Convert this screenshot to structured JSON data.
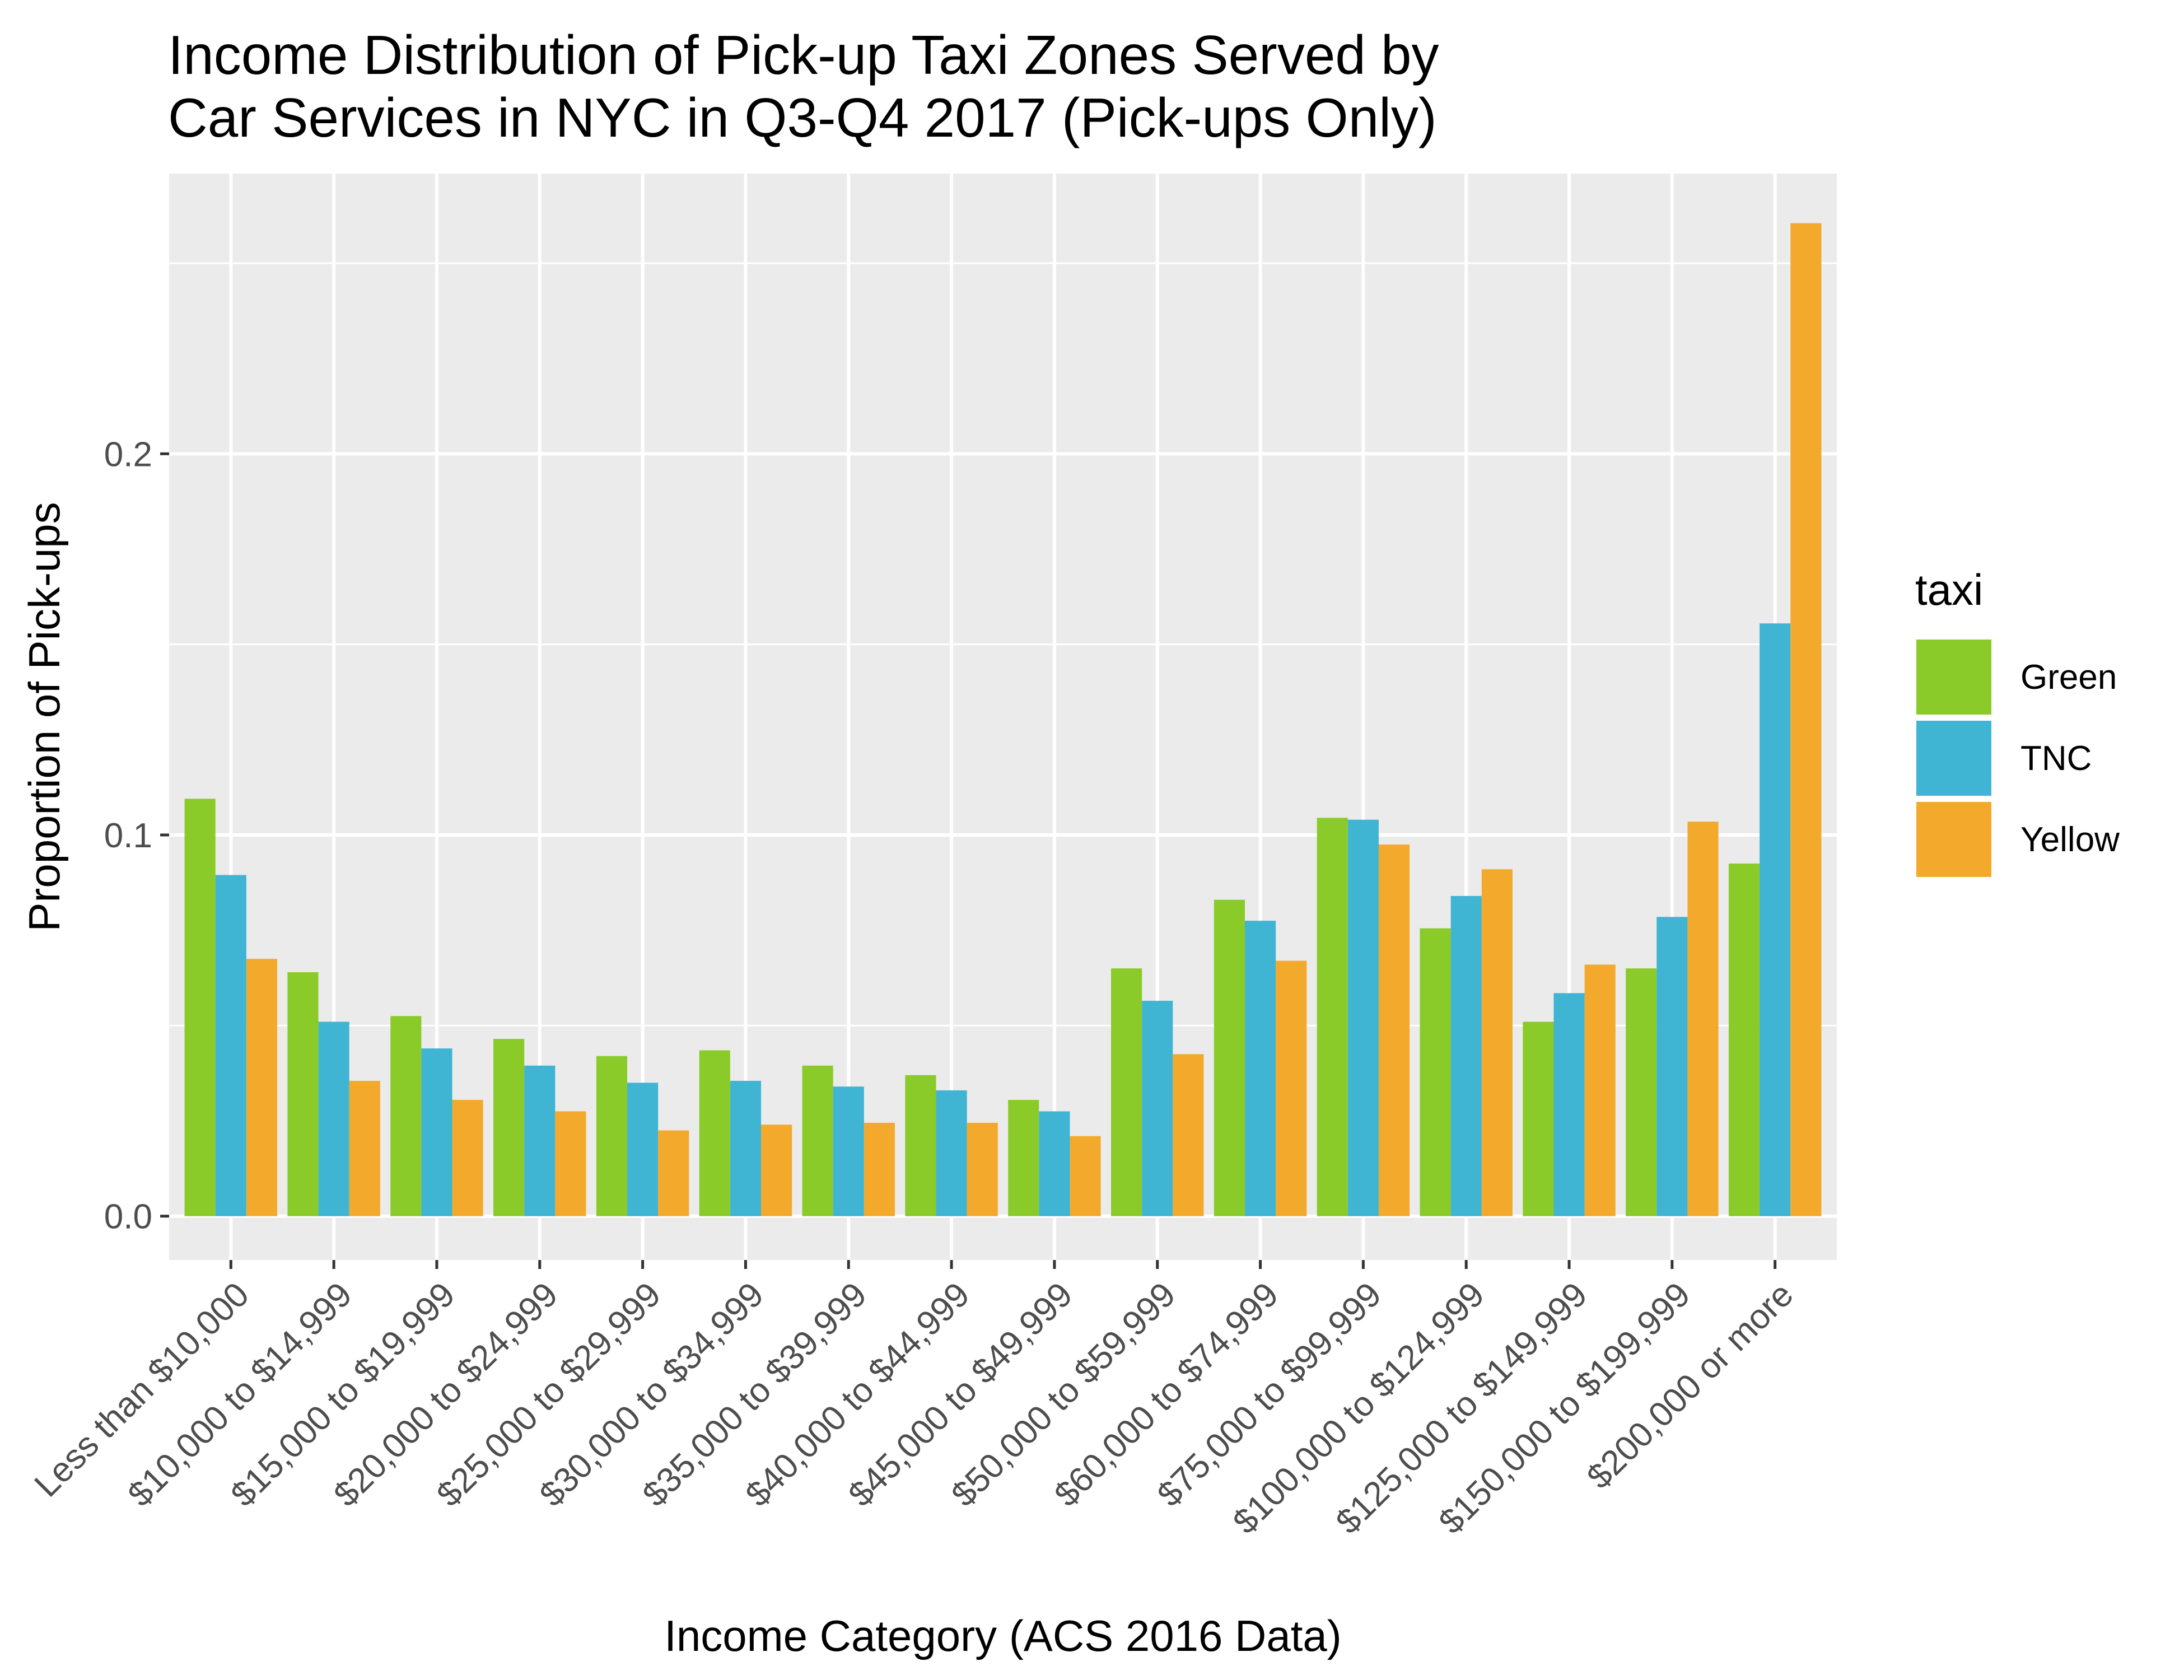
{
  "chart_data": {
    "type": "bar",
    "title_lines": [
      "Income Distribution of Pick-up Taxi Zones Served by",
      "Car Services in NYC in Q3-Q4 2017 (Pick-ups Only)"
    ],
    "xlabel": "Income Category (ACS 2016 Data)",
    "ylabel": "Proportion of Pick-ups",
    "ylim": [
      -0.0115,
      0.2735
    ],
    "y_ticks": [
      0.0,
      0.1,
      0.2
    ],
    "y_tick_labels": [
      "0.0",
      "0.1",
      "0.2"
    ],
    "grid": true,
    "legend_title": "taxi",
    "legend_position": "right",
    "categories": [
      "Less than $10,000",
      "$10,000 to $14,999",
      "$15,000 to $19,999",
      "$20,000 to $24,999",
      "$25,000 to $29,999",
      "$30,000 to $34,999",
      "$35,000 to $39,999",
      "$40,000 to $44,999",
      "$45,000 to $49,999",
      "$50,000 to $59,999",
      "$60,000 to $74,999",
      "$75,000 to $99,999",
      "$100,000 to $124,999",
      "$125,000 to $149,999",
      "$150,000 to $199,999",
      "$200,000 or more"
    ],
    "series": [
      {
        "name": "Green",
        "color": "#8acb2a",
        "values": [
          0.1095,
          0.064,
          0.0525,
          0.0465,
          0.042,
          0.0435,
          0.0395,
          0.037,
          0.0305,
          0.065,
          0.083,
          0.1045,
          0.0755,
          0.051,
          0.065,
          0.0925
        ]
      },
      {
        "name": "TNC",
        "color": "#40b4d3",
        "values": [
          0.0895,
          0.051,
          0.044,
          0.0395,
          0.035,
          0.0355,
          0.034,
          0.033,
          0.0275,
          0.0565,
          0.0775,
          0.104,
          0.084,
          0.0585,
          0.0785,
          0.1555
        ]
      },
      {
        "name": "Yellow",
        "color": "#f3aa2c",
        "values": [
          0.0675,
          0.0355,
          0.0305,
          0.0275,
          0.0225,
          0.024,
          0.0245,
          0.0245,
          0.021,
          0.0425,
          0.067,
          0.0975,
          0.091,
          0.066,
          0.1035,
          0.2605
        ]
      }
    ]
  }
}
